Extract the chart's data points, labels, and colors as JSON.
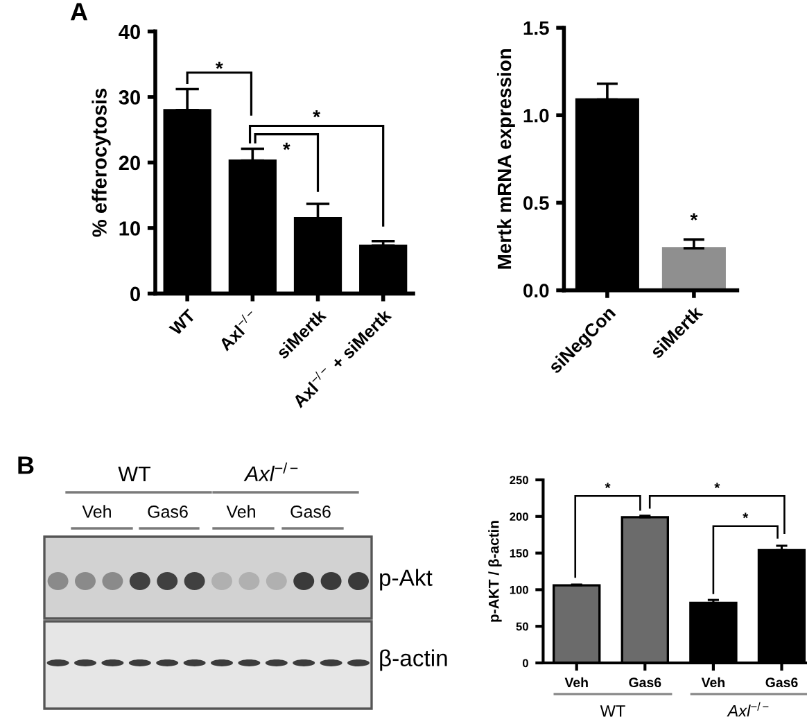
{
  "chart_data": [
    {
      "type": "bar",
      "ylabel": "% efferocytosis",
      "categories": [
        "WT",
        "Axl$^{−/−}$",
        "siMertk",
        "Axl$^{−/−}$ + siMertk"
      ],
      "values": [
        28,
        20.3,
        11.5,
        7.3
      ],
      "errors": [
        [
          28,
          31.2
        ],
        [
          20.3,
          22.1
        ],
        [
          11.5,
          13.7
        ],
        [
          7.3,
          8.0
        ]
      ],
      "color": "#000000",
      "ylim": [
        0,
        40
      ],
      "yticks": [
        0,
        10,
        20,
        30,
        40
      ],
      "annotations": [
        "A",
        "*",
        "*",
        "*"
      ]
    },
    {
      "type": "bar",
      "ylabel": "Mertk mRNA expression",
      "categories": [
        "siNegCon",
        "siMertk"
      ],
      "values": [
        1.09,
        0.24
      ],
      "errors": [
        [
          1.09,
          1.18
        ],
        [
          0.24,
          0.29
        ]
      ],
      "colors": [
        "#000000",
        "#8f8f8f"
      ],
      "ylim": [
        0,
        1.5
      ],
      "yticks": [
        {
          "value": 0,
          "label": "0.0"
        },
        {
          "value": 0.5,
          "label": "0.5"
        },
        {
          "value": 1,
          "label": "1.0"
        },
        {
          "value": 1.5,
          "label": "1.5"
        }
      ],
      "annotations": [
        "*"
      ]
    },
    {
      "type": "other",
      "annotations": [
        "B",
        "WT",
        "Axl$^{−/−}$",
        "Veh",
        "Gas6",
        "Veh",
        "Gas6",
        "p-Akt",
        "β-actin"
      ]
    },
    {
      "type": "bar",
      "ylabel": "p-AKT / β-actin",
      "categories": [
        "Veh",
        "Gas6",
        "Veh",
        "Gas6"
      ],
      "values": [
        106,
        199,
        82,
        154
      ],
      "errors": [
        [
          106,
          107
        ],
        [
          199,
          201
        ],
        [
          82,
          86
        ],
        [
          154,
          160
        ]
      ],
      "colors": [
        "#6b6b6b",
        "#6b6b6b",
        "#000000",
        "#000000"
      ],
      "ylim": [
        0,
        250
      ],
      "yticks": [
        0,
        50,
        100,
        150,
        200,
        250
      ],
      "annotations": [
        "*",
        "*",
        "*",
        "WT",
        "Axl$^{−/−}$"
      ]
    }
  ]
}
